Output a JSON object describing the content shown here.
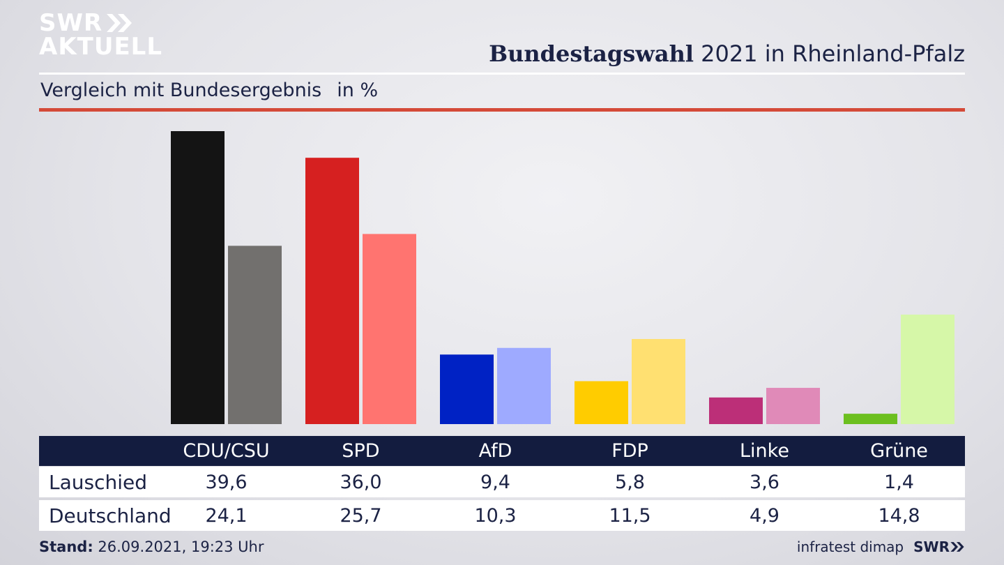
{
  "brand": {
    "line1": "SWR",
    "line2": "AKTUELL",
    "footer_logo": "SWR"
  },
  "header": {
    "title_bold": "Bundestagswahl",
    "title_rest": " 2021 in Rheinland-Pfalz"
  },
  "subheader": {
    "label": "Vergleich mit Bundesergebnis",
    "unit": "in %"
  },
  "chart_data": {
    "type": "bar",
    "title": "Bundestagswahl 2021 in Rheinland-Pfalz",
    "subtitle": "Vergleich mit Bundesergebnis",
    "ylabel": "in %",
    "categories": [
      "CDU/CSU",
      "SPD",
      "AfD",
      "FDP",
      "Linke",
      "Grüne"
    ],
    "series": [
      {
        "name": "Lauschied",
        "values": [
          39.6,
          36.0,
          9.4,
          5.8,
          3.6,
          1.4
        ],
        "colors": [
          "#141414",
          "#d62020",
          "#0022c4",
          "#ffcc00",
          "#bc2f78",
          "#6cbf1f"
        ]
      },
      {
        "name": "Deutschland",
        "values": [
          24.1,
          25.7,
          10.3,
          11.5,
          4.9,
          14.8
        ],
        "colors": [
          "#72706e",
          "#ff7470",
          "#9eaaff",
          "#ffe071",
          "#e08ab8",
          "#d6f7a8"
        ]
      }
    ],
    "ylim": [
      0,
      40
    ],
    "legend": "table-below",
    "grid": false
  },
  "table": {
    "rows": [
      {
        "label": "Lauschied",
        "values": [
          "39,6",
          "36,0",
          "9,4",
          "5,8",
          "3,6",
          "1,4"
        ]
      },
      {
        "label": "Deutschland",
        "values": [
          "24,1",
          "25,7",
          "10,3",
          "11,5",
          "4,9",
          "14,8"
        ]
      }
    ]
  },
  "footer": {
    "stand_label": "Stand:",
    "stand_value": " 26.09.2021, 19:23 Uhr",
    "source": "infratest dimap"
  }
}
